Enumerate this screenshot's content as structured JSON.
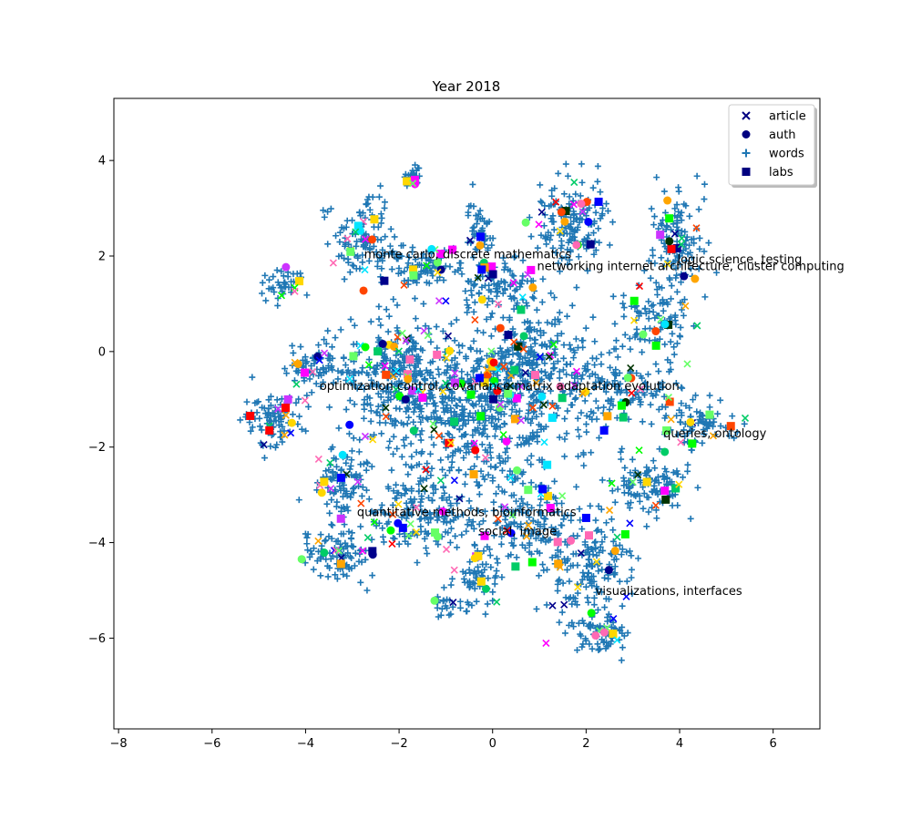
{
  "chart_data": {
    "type": "scatter",
    "title": "Year 2018",
    "xlabel": "",
    "ylabel": "",
    "xlim": [
      -8.1,
      7.0
    ],
    "ylim": [
      -7.9,
      5.3
    ],
    "xticks": [
      -8,
      -6,
      -4,
      -2,
      0,
      2,
      4,
      6
    ],
    "yticks": [
      -6,
      -4,
      -2,
      0,
      2,
      4
    ],
    "grid": false,
    "legend_position": "top-right",
    "legend": [
      {
        "label": "article",
        "marker": "x",
        "color": "#000080"
      },
      {
        "label": "auth",
        "marker": "circle",
        "color": "#000080"
      },
      {
        "label": "words",
        "marker": "plus",
        "color": "#1f77b4"
      },
      {
        "label": "labs",
        "marker": "square",
        "color": "#000080"
      }
    ],
    "annotations": [
      {
        "text": "monte carlo, discrete mathematics",
        "x": -2.75,
        "y": 1.95
      },
      {
        "text": "logic science, testing",
        "x": 3.95,
        "y": 1.85
      },
      {
        "text": "networking internet architecture, cluster computing",
        "x": 0.95,
        "y": 1.7
      },
      {
        "text": "optimization control, covariance matrix adaptation evolution",
        "x": -3.7,
        "y": -0.8
      },
      {
        "text": "queries, ontology",
        "x": 3.65,
        "y": -1.8
      },
      {
        "text": "quantitative methods, bioinformatics",
        "x": -2.9,
        "y": -3.45
      },
      {
        "text": "social, image",
        "x": -0.3,
        "y": -3.85
      },
      {
        "text": "visualizations, interfaces",
        "x": 2.2,
        "y": -5.1
      }
    ],
    "clusters": [
      {
        "cx": -0.5,
        "cy": -1.2,
        "rx": 2.3,
        "ry": 1.5,
        "n": 650
      },
      {
        "cx": 0.8,
        "cy": -0.2,
        "rx": 1.2,
        "ry": 1.0,
        "n": 220
      },
      {
        "cx": -2.0,
        "cy": -0.3,
        "rx": 1.2,
        "ry": 0.9,
        "n": 200
      },
      {
        "cx": -2.8,
        "cy": 2.4,
        "rx": 0.7,
        "ry": 0.8,
        "n": 110
      },
      {
        "cx": -1.7,
        "cy": 3.6,
        "rx": 0.15,
        "ry": 0.2,
        "n": 30
      },
      {
        "cx": -1.5,
        "cy": 1.8,
        "rx": 0.7,
        "ry": 0.4,
        "n": 80
      },
      {
        "cx": -0.3,
        "cy": 2.5,
        "rx": 0.25,
        "ry": 0.6,
        "n": 50
      },
      {
        "cx": 0.1,
        "cy": 1.4,
        "rx": 0.8,
        "ry": 0.5,
        "n": 90
      },
      {
        "cx": 1.7,
        "cy": 2.7,
        "rx": 0.7,
        "ry": 0.8,
        "n": 150
      },
      {
        "cx": 4.0,
        "cy": 2.4,
        "rx": 0.5,
        "ry": 1.0,
        "n": 110
      },
      {
        "cx": 3.5,
        "cy": 0.7,
        "rx": 0.6,
        "ry": 0.6,
        "n": 90
      },
      {
        "cx": 2.8,
        "cy": -0.8,
        "rx": 1.2,
        "ry": 0.6,
        "n": 120
      },
      {
        "cx": 4.3,
        "cy": -1.5,
        "rx": 0.7,
        "ry": 0.35,
        "n": 70
      },
      {
        "cx": 3.3,
        "cy": -2.8,
        "rx": 0.8,
        "ry": 0.5,
        "n": 110
      },
      {
        "cx": 2.0,
        "cy": -4.5,
        "rx": 0.9,
        "ry": 1.0,
        "n": 160
      },
      {
        "cx": 2.3,
        "cy": -5.9,
        "rx": 0.5,
        "ry": 0.4,
        "n": 70
      },
      {
        "cx": 0.8,
        "cy": -3.5,
        "rx": 1.0,
        "ry": 0.8,
        "n": 140
      },
      {
        "cx": -0.3,
        "cy": -4.8,
        "rx": 0.4,
        "ry": 0.6,
        "n": 60
      },
      {
        "cx": -1.5,
        "cy": -3.4,
        "rx": 1.0,
        "ry": 0.7,
        "n": 150
      },
      {
        "cx": -3.3,
        "cy": -4.2,
        "rx": 0.6,
        "ry": 0.5,
        "n": 90
      },
      {
        "cx": -3.2,
        "cy": -2.8,
        "rx": 0.5,
        "ry": 0.6,
        "n": 80
      },
      {
        "cx": -4.7,
        "cy": -1.4,
        "rx": 0.6,
        "ry": 0.5,
        "n": 90
      },
      {
        "cx": -3.8,
        "cy": -0.3,
        "rx": 0.6,
        "ry": 0.4,
        "n": 60
      },
      {
        "cx": -4.5,
        "cy": 1.4,
        "rx": 0.4,
        "ry": 0.3,
        "n": 40
      },
      {
        "cx": -1.0,
        "cy": -5.3,
        "rx": 0.2,
        "ry": 0.3,
        "n": 20
      }
    ],
    "marker_palette": [
      "#ff00ff",
      "#ff0000",
      "#ffd700",
      "#00ff00",
      "#00e5ff",
      "#ff4500",
      "#00008b",
      "#003300",
      "#cc33ff",
      "#ffa500",
      "#66ff66",
      "#ff69b4",
      "#0000ff",
      "#00cc66"
    ]
  }
}
